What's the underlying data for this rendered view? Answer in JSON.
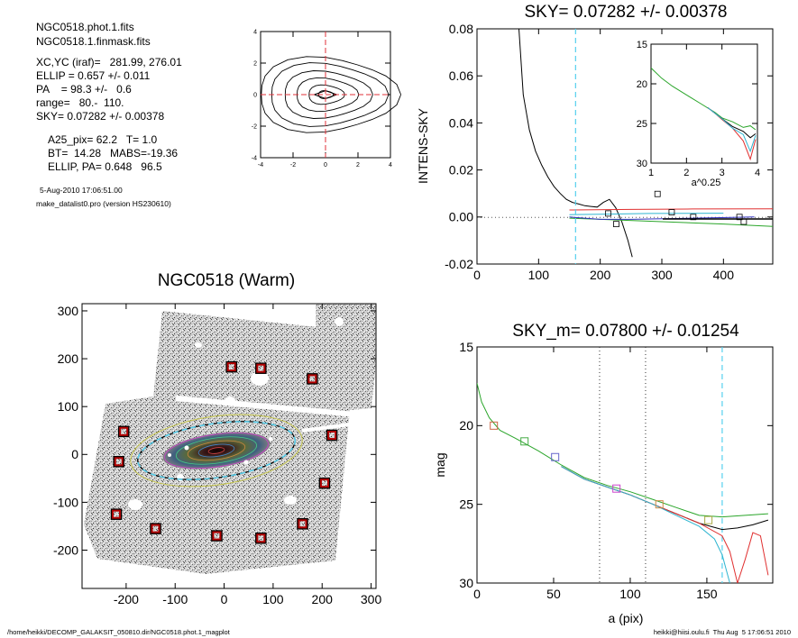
{
  "info": {
    "file1": "NGC0518.phot.1.fits",
    "file2": "NGC0518.1.finmask.fits",
    "xcyc": "XC,YC (iraf)=   281.99, 276.01",
    "ellip": "ELLIP = 0.657 +/- 0.011",
    "pa": "PA    = 98.3 +/-   0.6",
    "range": "range=   80.-  110.",
    "sky": "SKY= 0.07282 +/- 0.00378",
    "a25": "A25_pix= 62.2   T= 1.0",
    "bt": "BT=  14.28   MABS=-19.36",
    "ellip_pa": "ELLIP, PA= 0.648   96.5",
    "date": "5-Aug-2010 17:06:51.00",
    "program": "make_datalist0.pro (version HS230610)"
  },
  "footer": {
    "left": "/home/heikki/DECOMP_GALAKSIT_050810.dir/NGC0518.phot.1_magplot",
    "right": "heikki@hiisi.oulu.fi  Thu Aug  5 17:06:51 2010"
  },
  "chart_data": [
    {
      "id": "contour",
      "type": "line",
      "title": "",
      "xlim": [
        -4,
        4
      ],
      "ylim": [
        -4,
        4
      ],
      "xticks": [
        -4,
        -2,
        0,
        2,
        4
      ],
      "yticks": [
        -4,
        -2,
        0,
        2,
        4
      ],
      "contour_scales": [
        0.45,
        1.1,
        1.9,
        2.7,
        3.6,
        4.3
      ],
      "cross_color": "#e0303a"
    },
    {
      "id": "sky",
      "type": "line",
      "title": "SKY= 0.07282 +/- 0.00378",
      "xlabel": "",
      "ylabel": "INTENS-SKY",
      "xlim": [
        0,
        480
      ],
      "ylim": [
        -0.02,
        0.08
      ],
      "xticks": [
        0,
        100,
        200,
        300,
        400
      ],
      "yticks": [
        -0.02,
        0.0,
        0.02,
        0.04,
        0.06,
        0.08
      ],
      "ytick_labels": [
        "-0.02",
        "0.00",
        "0.02",
        "0.04",
        "0.06",
        "0.08"
      ],
      "vline": 160,
      "series": [
        {
          "color": "#000000",
          "x": [
            68,
            75,
            85,
            95,
            105,
            115,
            125,
            135,
            145,
            155,
            165,
            175,
            185,
            195,
            205,
            215,
            225,
            235,
            245,
            252
          ],
          "y": [
            0.08,
            0.052,
            0.037,
            0.028,
            0.022,
            0.017,
            0.013,
            0.01,
            0.0075,
            0.0062,
            0.0055,
            0.0048,
            0.0045,
            0.0042,
            0.0062,
            0.0075,
            0.004,
            -0.002,
            -0.01,
            -0.017
          ]
        },
        {
          "color": "#2aa52a",
          "x": [
            150,
            200,
            300,
            400,
            480
          ],
          "y": [
            -0.0005,
            -0.001,
            -0.002,
            -0.003,
            -0.004
          ]
        },
        {
          "color": "#e03030",
          "x": [
            150,
            250,
            350,
            480
          ],
          "y": [
            0.003,
            0.0032,
            0.0034,
            0.0035
          ]
        },
        {
          "color": "#3030c0",
          "x": [
            150,
            200,
            250,
            350,
            450
          ],
          "y": [
            0.0,
            -0.001,
            -0.001,
            -0.0005,
            0.0
          ]
        },
        {
          "color": "#2fb5d0",
          "x": [
            150,
            200,
            280,
            400
          ],
          "y": [
            0.001,
            0.0012,
            0.0015,
            0.0016
          ]
        }
      ],
      "squares": {
        "x": [
          213,
          226,
          293,
          316,
          351,
          426,
          433
        ],
        "y": [
          0.0015,
          -0.003,
          0.0098,
          0.002,
          0.0,
          0.0,
          -0.002
        ]
      }
    },
    {
      "id": "sky_inset",
      "type": "line",
      "xlabel": "a^0.25",
      "xlim": [
        1,
        4
      ],
      "ylim": [
        30,
        15
      ],
      "xticks": [
        1,
        2,
        3,
        4
      ],
      "yticks": [
        15,
        20,
        25,
        30
      ],
      "series": [
        {
          "color": "#2aa52a",
          "x": [
            1.0,
            1.3,
            1.6,
            2.0,
            2.4,
            2.8,
            3.0,
            3.3,
            3.6,
            3.8,
            3.95
          ],
          "y": [
            18.0,
            19.3,
            20.3,
            21.4,
            22.5,
            23.6,
            24.3,
            24.8,
            25.5,
            25.3,
            25.8
          ]
        },
        {
          "color": "#000000",
          "x": [
            2.6,
            2.8,
            3.0,
            3.3,
            3.6,
            3.8,
            3.95
          ],
          "y": [
            23.0,
            23.7,
            24.4,
            25.4,
            26.0,
            26.8,
            26.3
          ]
        },
        {
          "color": "#e03030",
          "x": [
            2.6,
            2.8,
            3.0,
            3.3,
            3.6,
            3.8,
            3.95
          ],
          "y": [
            23.0,
            23.7,
            24.5,
            25.6,
            27.2,
            29.5,
            27.0
          ]
        },
        {
          "color": "#2fb5d0",
          "x": [
            2.6,
            2.8,
            3.0,
            3.3,
            3.6,
            3.8,
            3.95
          ],
          "y": [
            23.0,
            23.7,
            24.4,
            25.6,
            26.4,
            28.5,
            26.5
          ]
        }
      ]
    },
    {
      "id": "image",
      "type": "scatter",
      "title": "NGC0518 (Warm)",
      "xlim": [
        -290,
        310
      ],
      "ylim": [
        -280,
        315
      ],
      "xticks": [
        -200,
        -100,
        0,
        100,
        200,
        300
      ],
      "yticks": [
        -200,
        -100,
        0,
        100,
        200,
        300
      ],
      "markers": {
        "x": [
          15,
          75,
          180,
          220,
          205,
          -205,
          -215,
          -220,
          -140,
          -15,
          75,
          160
        ],
        "y": [
          183,
          180,
          158,
          40,
          -60,
          48,
          -15,
          -125,
          -155,
          -170,
          -175,
          -145
        ]
      }
    },
    {
      "id": "mag",
      "type": "line",
      "title": "SKY_m=  0.07800 +/- 0.01254",
      "xlabel": "a (pix)",
      "ylabel": "mag",
      "xlim": [
        0,
        193
      ],
      "ylim": [
        30,
        15
      ],
      "xticks": [
        0,
        50,
        100,
        150
      ],
      "yticks": [
        15,
        20,
        25,
        30
      ],
      "vlines": [
        80,
        110
      ],
      "vline_dashed": 160,
      "series": [
        {
          "color": "#2aa52a",
          "x": [
            0,
            3,
            8,
            15,
            25,
            40,
            55,
            70,
            85,
            100,
            115,
            130,
            145,
            160,
            175,
            190
          ],
          "y": [
            17.3,
            18.5,
            19.5,
            20.3,
            20.8,
            21.6,
            22.5,
            23.3,
            23.8,
            24.2,
            24.7,
            25.2,
            25.7,
            25.8,
            25.7,
            25.6
          ]
        },
        {
          "color": "#000000",
          "x": [
            55,
            70,
            85,
            100,
            115,
            130,
            145,
            160,
            170,
            180,
            190
          ],
          "y": [
            22.6,
            23.4,
            23.9,
            24.4,
            25.0,
            25.6,
            26.2,
            26.6,
            26.5,
            26.3,
            26.0
          ]
        },
        {
          "color": "#e03030",
          "x": [
            55,
            70,
            85,
            100,
            115,
            130,
            145,
            160,
            165,
            170,
            175,
            180,
            185,
            190
          ],
          "y": [
            22.6,
            23.4,
            23.9,
            24.4,
            25.0,
            25.6,
            26.2,
            27.0,
            28.0,
            30.0,
            28.5,
            26.8,
            27.0,
            29.5
          ]
        },
        {
          "color": "#2fb5d0",
          "x": [
            55,
            70,
            85,
            100,
            115,
            130,
            145,
            155,
            160,
            165
          ],
          "y": [
            22.6,
            23.4,
            23.9,
            24.4,
            25.0,
            25.7,
            26.4,
            27.2,
            28.2,
            30.0
          ]
        }
      ],
      "squares": {
        "x": [
          11,
          31,
          51,
          91,
          119,
          151
        ],
        "y": [
          20.0,
          21.0,
          22.0,
          24.0,
          25.0,
          26.0
        ],
        "colors": [
          "#cc6644",
          "#44aa44",
          "#6666cc",
          "#cc44cc",
          "#cc8844",
          "#aaaa44"
        ]
      }
    }
  ]
}
